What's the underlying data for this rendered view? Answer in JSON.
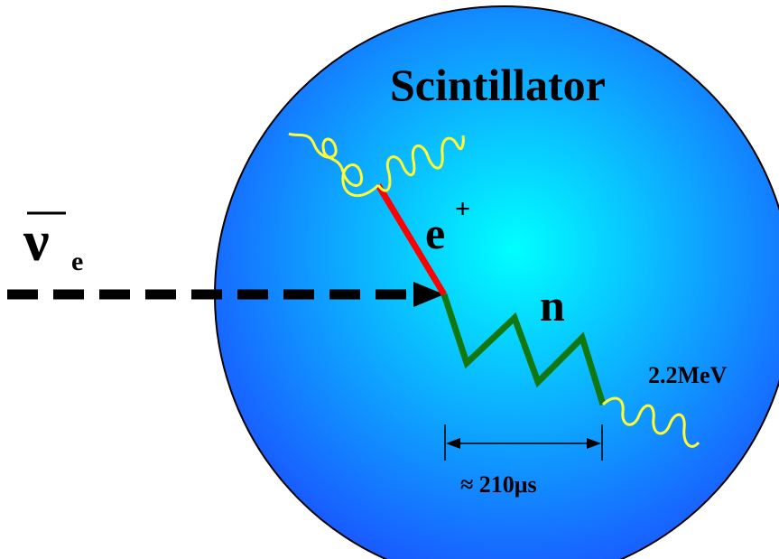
{
  "labels": {
    "title": "Scintillator",
    "neutrino_symbol": "ν",
    "neutrino_subscript": "e",
    "positron_symbol": "e",
    "positron_superscript": "+",
    "neutron_symbol": "n",
    "capture_energy": "2.2MeV",
    "capture_time": "≈ 210μs"
  },
  "colors": {
    "sphere_center": "#00ffff",
    "sphere_edge": "#1a55ff",
    "positron_track": "#ff0000",
    "neutron_track": "#117711",
    "gamma_wave": "#ffff33",
    "neutrino_arrow": "#000000"
  },
  "icons": {
    "incoming_neutrino": "dashed-arrow",
    "positron": "straight-line",
    "neutron": "zigzag-line",
    "annihilation_gammas": "wavy-lines",
    "capture_gamma": "wavy-line",
    "time_interval": "double-arrow"
  }
}
